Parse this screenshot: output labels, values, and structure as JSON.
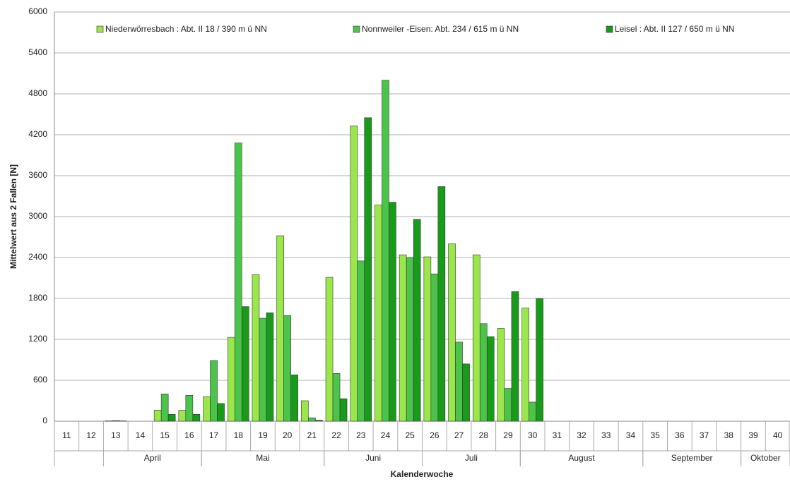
{
  "chart_data": {
    "type": "bar",
    "y_label": "Mittelwert aus 2 Fallen [N]",
    "x_label": "Kalenderwoche",
    "categories": [
      "11",
      "12",
      "13",
      "14",
      "15",
      "16",
      "17",
      "18",
      "19",
      "20",
      "21",
      "22",
      "23",
      "24",
      "25",
      "26",
      "27",
      "28",
      "29",
      "30",
      "31",
      "32",
      "33",
      "34",
      "35",
      "36",
      "37",
      "38",
      "39",
      "40"
    ],
    "series": [
      {
        "name": "Niederwörresbach : Abt. II 18  /  390 m ü NN",
        "color": "#9be64b",
        "values": [
          null,
          null,
          5,
          null,
          160,
          160,
          360,
          1230,
          2150,
          2720,
          300,
          2110,
          4330,
          3170,
          2440,
          2410,
          2600,
          2440,
          1360,
          1660,
          null,
          null,
          null,
          null,
          null,
          null,
          null,
          null,
          null,
          null
        ]
      },
      {
        "name": "Nonnweiler -Eisen:  Abt.  234  /  615 m ü NN",
        "color": "#4cc44c",
        "values": [
          null,
          null,
          10,
          null,
          400,
          380,
          890,
          4080,
          1510,
          1550,
          50,
          700,
          2350,
          5000,
          2400,
          2160,
          1160,
          1430,
          480,
          280,
          null,
          null,
          null,
          null,
          null,
          null,
          null,
          null,
          null,
          null
        ]
      },
      {
        "name": "Leisel :  Abt. II 127  /    650 m ü NN",
        "color": "#1a9a1a",
        "values": [
          null,
          null,
          5,
          null,
          100,
          100,
          260,
          1680,
          1590,
          680,
          15,
          330,
          4450,
          3210,
          2960,
          3440,
          840,
          1240,
          1900,
          1800,
          null,
          null,
          null,
          null,
          null,
          null,
          null,
          null,
          null,
          null
        ]
      }
    ],
    "month_groups": [
      {
        "label": "April",
        "from": "13",
        "to": "16"
      },
      {
        "label": "Mai",
        "from": "17",
        "to": "21"
      },
      {
        "label": "Juni",
        "from": "22",
        "to": "25"
      },
      {
        "label": "Juli",
        "from": "26",
        "to": "29"
      },
      {
        "label": "August",
        "from": "30",
        "to": "34"
      },
      {
        "label": "September",
        "from": "35",
        "to": "38"
      },
      {
        "label": "Oktober",
        "from": "39",
        "to": "40"
      }
    ],
    "ylim": [
      0,
      6000
    ],
    "yticks": [
      0,
      600,
      1200,
      1800,
      2400,
      3000,
      3600,
      4200,
      4800,
      5400,
      6000
    ],
    "grid": true
  }
}
